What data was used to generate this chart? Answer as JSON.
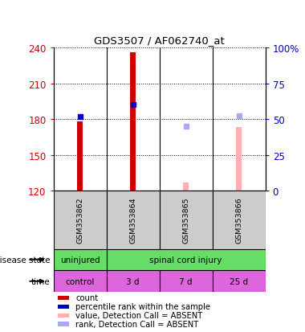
{
  "title": "GDS3507 / AF062740_at",
  "samples": [
    "GSM353862",
    "GSM353864",
    "GSM353865",
    "GSM353866"
  ],
  "ylim_left": [
    120,
    240
  ],
  "ylim_right": [
    0,
    100
  ],
  "yticks_left": [
    120,
    150,
    180,
    210,
    240
  ],
  "yticks_right": [
    0,
    25,
    50,
    75,
    100
  ],
  "bar_values": [
    178,
    236,
    null,
    null
  ],
  "bar_absent_values": [
    null,
    null,
    127,
    173
  ],
  "bar_absent_color": "#ffb0b0",
  "dot_values": [
    182,
    192,
    null,
    null
  ],
  "dot_color": "#0000cc",
  "dot_absent_values": [
    null,
    null,
    174,
    183
  ],
  "dot_absent_color": "#aaaaee",
  "disease_state_labels": [
    "uninjured",
    "spinal cord injury"
  ],
  "disease_state_color": "#66dd66",
  "time_labels": [
    "control",
    "3 d",
    "7 d",
    "25 d"
  ],
  "time_color": "#dd66dd",
  "legend_items": [
    {
      "color": "#cc0000",
      "label": "count"
    },
    {
      "color": "#0000cc",
      "label": "percentile rank within the sample"
    },
    {
      "color": "#ffb0b0",
      "label": "value, Detection Call = ABSENT"
    },
    {
      "color": "#aaaaee",
      "label": "rank, Detection Call = ABSENT"
    }
  ],
  "label_color_left": "#cc0000",
  "label_color_right": "#0000bb",
  "sample_box_color": "#cccccc",
  "bar_color": "#cc0000",
  "bar_width": 0.12,
  "absent_bar_width": 0.1
}
